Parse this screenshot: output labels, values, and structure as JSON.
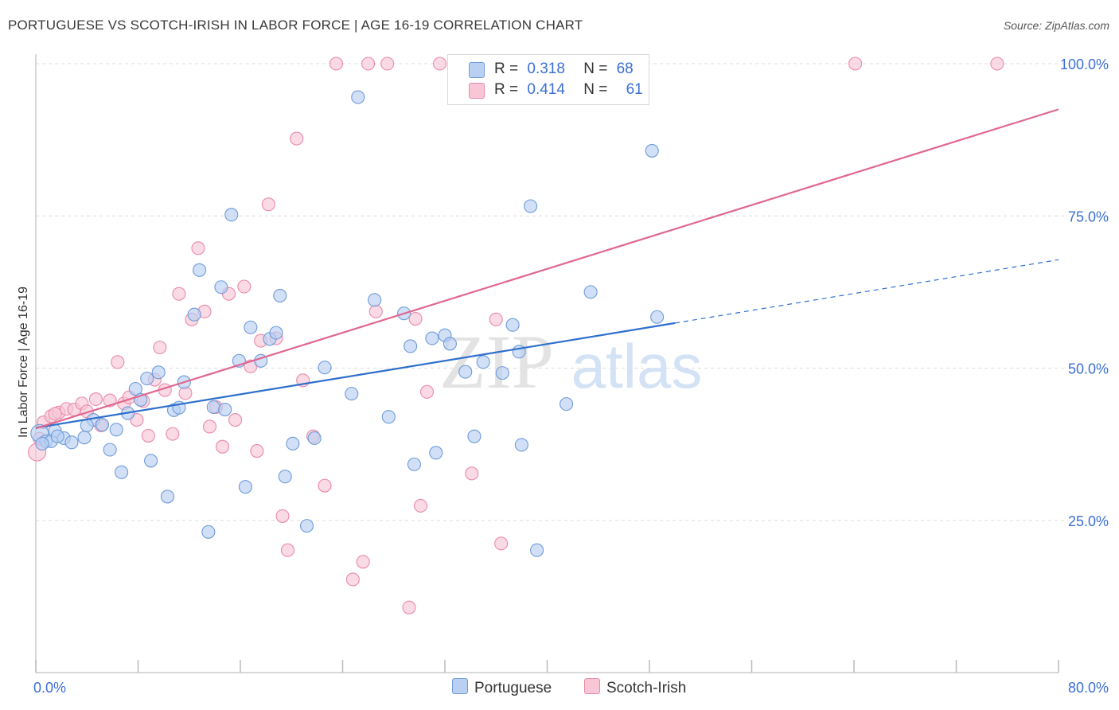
{
  "title": "PORTUGUESE VS SCOTCH-IRISH IN LABOR FORCE | AGE 16-19 CORRELATION CHART",
  "source": "Source: ZipAtlas.com",
  "watermark": {
    "zip": "ZIP",
    "atlas": "atlas"
  },
  "colors": {
    "blue_fill": "#b9d0f2",
    "blue_stroke": "#6f9bd8",
    "blue_line": "#2f6fcc",
    "pink_fill": "#f8c6d5",
    "pink_stroke": "#e98aa8",
    "pink_line": "#e0678f",
    "grid": "#dddddd",
    "tick_label": "#3b6fd4"
  },
  "legend": {
    "rows": [
      {
        "r_label": "R =",
        "r_value": "0.318",
        "n_label": "N =",
        "n_value": "68"
      },
      {
        "r_label": "R =",
        "r_value": "0.414",
        "n_label": "N =",
        "n_value": "61"
      }
    ]
  },
  "bottom_legend": {
    "series1": "Portuguese",
    "series2": "Scotch-Irish"
  },
  "chart_data": {
    "type": "scatter",
    "title": "PORTUGUESE VS SCOTCH-IRISH IN LABOR FORCE | AGE 16-19 CORRELATION CHART",
    "xlabel": "",
    "ylabel": "In Labor Force | Age 16-19",
    "xlim": [
      0,
      80
    ],
    "ylim": [
      0,
      100
    ],
    "x_tick_labels": [
      "0.0%",
      "80.0%"
    ],
    "y_tick_labels": [
      "25.0%",
      "50.0%",
      "75.0%",
      "100.0%"
    ],
    "y_ticks": [
      25,
      50,
      75,
      100
    ],
    "grid": true,
    "series": [
      {
        "name": "Portuguese",
        "R": 0.318,
        "N": 68,
        "trend": {
          "x0": 0,
          "y0": 40.2,
          "x1": 50,
          "y1": 57.4,
          "dash_to_x": 80,
          "dash_to_y": 67.8
        },
        "points": [
          [
            0.3,
            39.3
          ],
          [
            0.8,
            38
          ],
          [
            1.2,
            38
          ],
          [
            1.5,
            39.7
          ],
          [
            2.2,
            38.5
          ],
          [
            2.8,
            37.8
          ],
          [
            3.8,
            38.6
          ],
          [
            4.5,
            41.5
          ],
          [
            5.2,
            40.7
          ],
          [
            5.8,
            36.6
          ],
          [
            6.3,
            39.9
          ],
          [
            6.7,
            32.9
          ],
          [
            7.2,
            42.6
          ],
          [
            7.8,
            46.6
          ],
          [
            8.2,
            44.8
          ],
          [
            8.7,
            48.3
          ],
          [
            9.0,
            34.8
          ],
          [
            9.6,
            49.3
          ],
          [
            10.3,
            28.9
          ],
          [
            10.8,
            43.1
          ],
          [
            11.2,
            43.5
          ],
          [
            11.6,
            47.7
          ],
          [
            12.4,
            58.8
          ],
          [
            12.8,
            66.1
          ],
          [
            13.5,
            23.1
          ],
          [
            13.9,
            43.6
          ],
          [
            14.5,
            63.3
          ],
          [
            14.8,
            43.2
          ],
          [
            15.3,
            75.2
          ],
          [
            15.9,
            51.2
          ],
          [
            16.4,
            30.5
          ],
          [
            16.8,
            56.7
          ],
          [
            17.6,
            51.2
          ],
          [
            18.3,
            54.8
          ],
          [
            18.8,
            55.8
          ],
          [
            19.1,
            61.9
          ],
          [
            19.5,
            32.2
          ],
          [
            20.1,
            37.6
          ],
          [
            21.2,
            24.1
          ],
          [
            21.8,
            38.5
          ],
          [
            22.6,
            50.1
          ],
          [
            24.7,
            45.8
          ],
          [
            25.2,
            94.5
          ],
          [
            26.5,
            61.2
          ],
          [
            27.6,
            42.0
          ],
          [
            28.8,
            59.0
          ],
          [
            29.3,
            53.6
          ],
          [
            29.6,
            34.2
          ],
          [
            31.0,
            54.9
          ],
          [
            31.3,
            36.1
          ],
          [
            32.0,
            55.4
          ],
          [
            32.4,
            54.0
          ],
          [
            33.6,
            49.4
          ],
          [
            34.3,
            38.8
          ],
          [
            35.0,
            51.0
          ],
          [
            36.5,
            49.2
          ],
          [
            37.3,
            57.1
          ],
          [
            37.8,
            52.7
          ],
          [
            38.0,
            37.4
          ],
          [
            38.7,
            76.6
          ],
          [
            39.2,
            20.1
          ],
          [
            41.5,
            44.1
          ],
          [
            43.4,
            62.5
          ],
          [
            48.2,
            85.7
          ],
          [
            48.6,
            58.4
          ],
          [
            0.5,
            37.6
          ],
          [
            1.7,
            38.8
          ],
          [
            4.0,
            40.6
          ]
        ]
      },
      {
        "name": "Scotch-Irish",
        "R": 0.414,
        "N": 61,
        "trend": {
          "x0": 0,
          "y0": 40.1,
          "x1": 80,
          "y1": 92.5
        },
        "points": [
          [
            0.1,
            36.2
          ],
          [
            0.6,
            41.1
          ],
          [
            1.2,
            42.1
          ],
          [
            1.8,
            42.7
          ],
          [
            2.4,
            43.3
          ],
          [
            3.0,
            43.2
          ],
          [
            3.6,
            44.2
          ],
          [
            4.0,
            42.9
          ],
          [
            4.7,
            44.9
          ],
          [
            5.1,
            40.6
          ],
          [
            5.8,
            44.7
          ],
          [
            6.4,
            51.0
          ],
          [
            6.9,
            44.2
          ],
          [
            7.3,
            45.2
          ],
          [
            7.9,
            41.5
          ],
          [
            8.4,
            44.6
          ],
          [
            8.8,
            38.9
          ],
          [
            9.3,
            48.1
          ],
          [
            9.7,
            53.4
          ],
          [
            10.1,
            46.4
          ],
          [
            10.7,
            39.2
          ],
          [
            11.2,
            62.2
          ],
          [
            11.7,
            45.9
          ],
          [
            12.2,
            58.0
          ],
          [
            12.7,
            69.7
          ],
          [
            13.2,
            59.3
          ],
          [
            13.6,
            40.4
          ],
          [
            14.1,
            43.6
          ],
          [
            14.6,
            37.1
          ],
          [
            15.1,
            62.2
          ],
          [
            15.6,
            41.5
          ],
          [
            16.3,
            63.4
          ],
          [
            16.8,
            50.3
          ],
          [
            17.3,
            36.4
          ],
          [
            17.6,
            54.5
          ],
          [
            18.2,
            76.9
          ],
          [
            18.8,
            54.9
          ],
          [
            19.3,
            25.7
          ],
          [
            19.7,
            20.1
          ],
          [
            20.4,
            87.7
          ],
          [
            20.9,
            48.0
          ],
          [
            21.7,
            38.8
          ],
          [
            22.6,
            30.7
          ],
          [
            23.5,
            100.0
          ],
          [
            24.8,
            15.3
          ],
          [
            25.6,
            18.2
          ],
          [
            26.0,
            100.0
          ],
          [
            26.6,
            59.3
          ],
          [
            27.5,
            100.0
          ],
          [
            29.2,
            10.7
          ],
          [
            29.7,
            58.1
          ],
          [
            30.1,
            27.4
          ],
          [
            30.6,
            46.1
          ],
          [
            31.6,
            100.0
          ],
          [
            34.1,
            32.7
          ],
          [
            36.0,
            58.0
          ],
          [
            36.4,
            21.2
          ],
          [
            64.1,
            100.0
          ],
          [
            75.2,
            100.0
          ],
          [
            0.3,
            38.4
          ],
          [
            1.5,
            42.5
          ]
        ]
      }
    ]
  }
}
